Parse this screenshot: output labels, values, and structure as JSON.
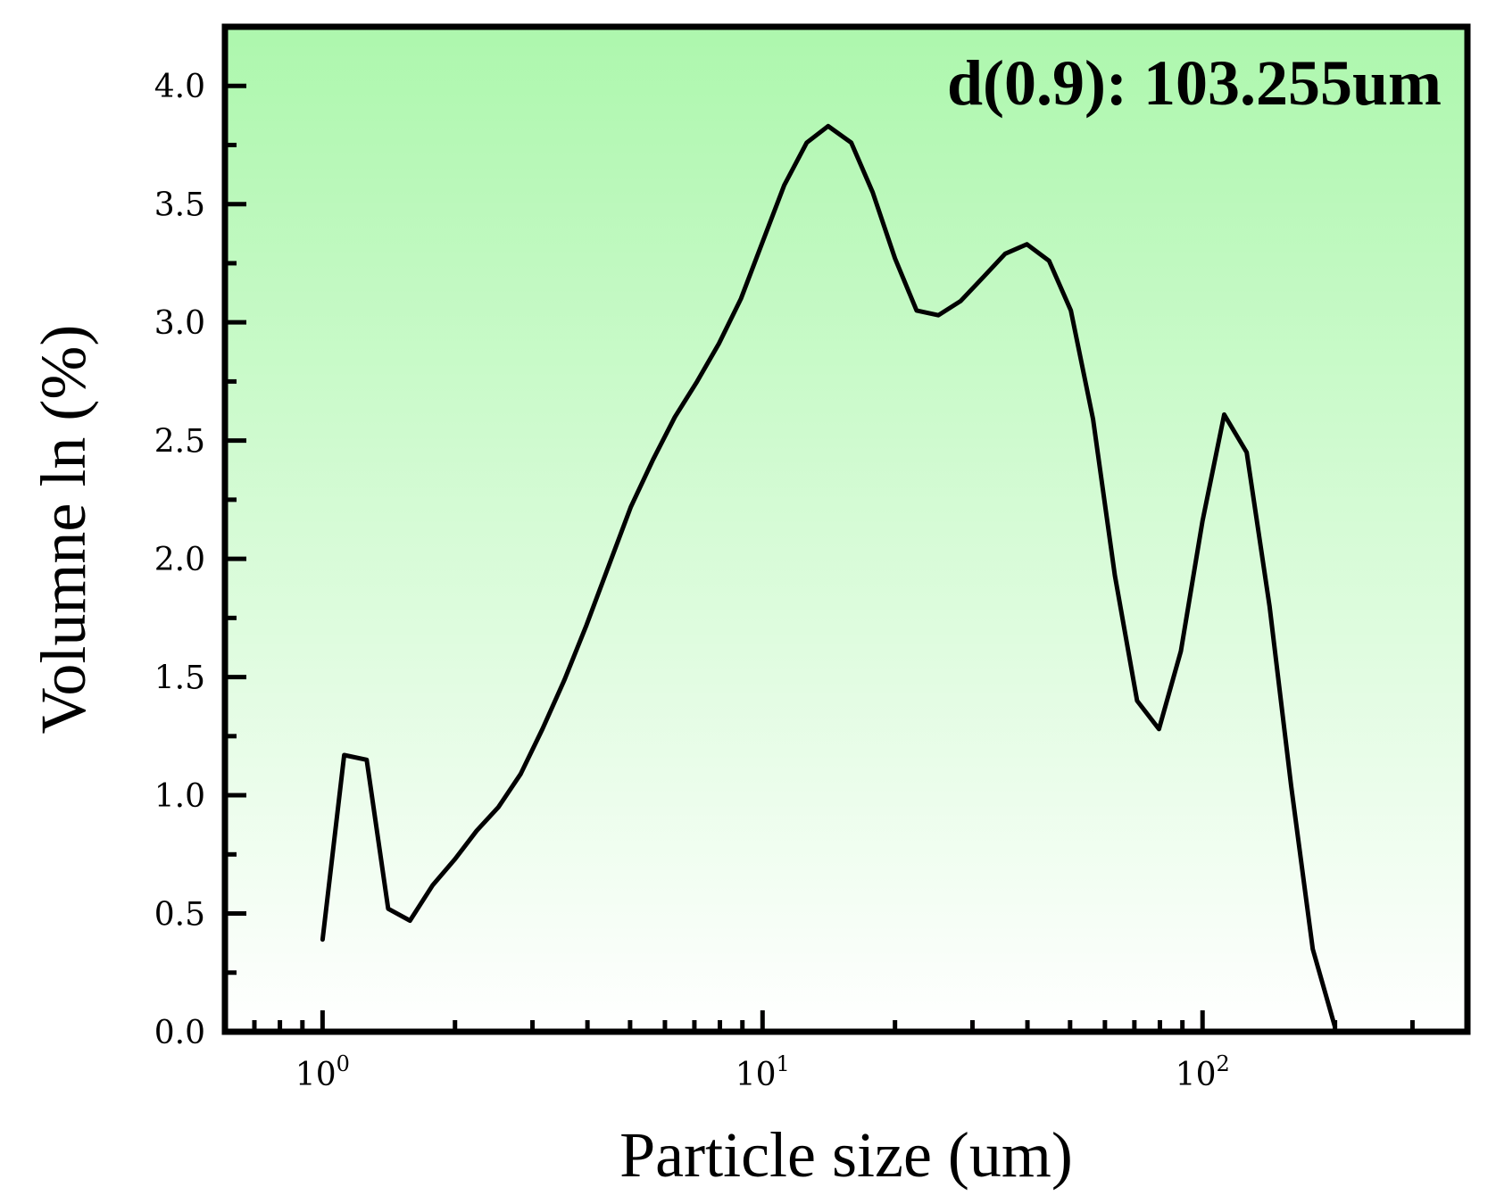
{
  "chart_data": {
    "type": "line",
    "xlabel": "Particle size (um)",
    "ylabel": "Volumne ln (%)",
    "annotation": "d(0.9): 103.255um",
    "x_scale": "log",
    "xlim": [
      0.6,
      400
    ],
    "ylim": [
      0,
      4.25
    ],
    "x_ticks": [
      {
        "value": 1,
        "base": "10",
        "exp": "0"
      },
      {
        "value": 10,
        "base": "10",
        "exp": "1"
      },
      {
        "value": 100,
        "base": "10",
        "exp": "2"
      }
    ],
    "y_ticks": [
      "0.0",
      "0.5",
      "1.0",
      "1.5",
      "2.0",
      "2.5",
      "3.0",
      "3.5",
      "4.0"
    ],
    "background_gradient": [
      "#adf7ad",
      "#ffffff"
    ],
    "line_color": "#000000",
    "grid": false,
    "series": [
      {
        "x": [
          1.0,
          1.12,
          1.26,
          1.41,
          1.58,
          1.78,
          2.0,
          2.24,
          2.51,
          2.82,
          3.16,
          3.55,
          3.98,
          4.47,
          5.02,
          5.64,
          6.32,
          7.1,
          7.96,
          8.93,
          10.0,
          11.2,
          12.6,
          14.1,
          15.9,
          17.8,
          20.0,
          22.4,
          25.1,
          28.2,
          31.7,
          35.6,
          39.9,
          44.8,
          50.2,
          56.4,
          63.2,
          71.0,
          79.6,
          89.3,
          100.0,
          112.0,
          126.0,
          142.0,
          159.0,
          178.0,
          200.0
        ],
        "y": [
          0.39,
          1.17,
          1.15,
          0.52,
          0.47,
          0.62,
          0.73,
          0.85,
          0.95,
          1.09,
          1.28,
          1.49,
          1.72,
          1.97,
          2.22,
          2.42,
          2.6,
          2.75,
          2.91,
          3.1,
          3.34,
          3.58,
          3.76,
          3.83,
          3.76,
          3.55,
          3.27,
          3.05,
          3.03,
          3.09,
          3.19,
          3.29,
          3.33,
          3.26,
          3.05,
          2.59,
          1.93,
          1.4,
          1.28,
          1.61,
          2.16,
          2.61,
          2.45,
          1.8,
          1.04,
          0.35,
          0.02
        ]
      }
    ]
  }
}
